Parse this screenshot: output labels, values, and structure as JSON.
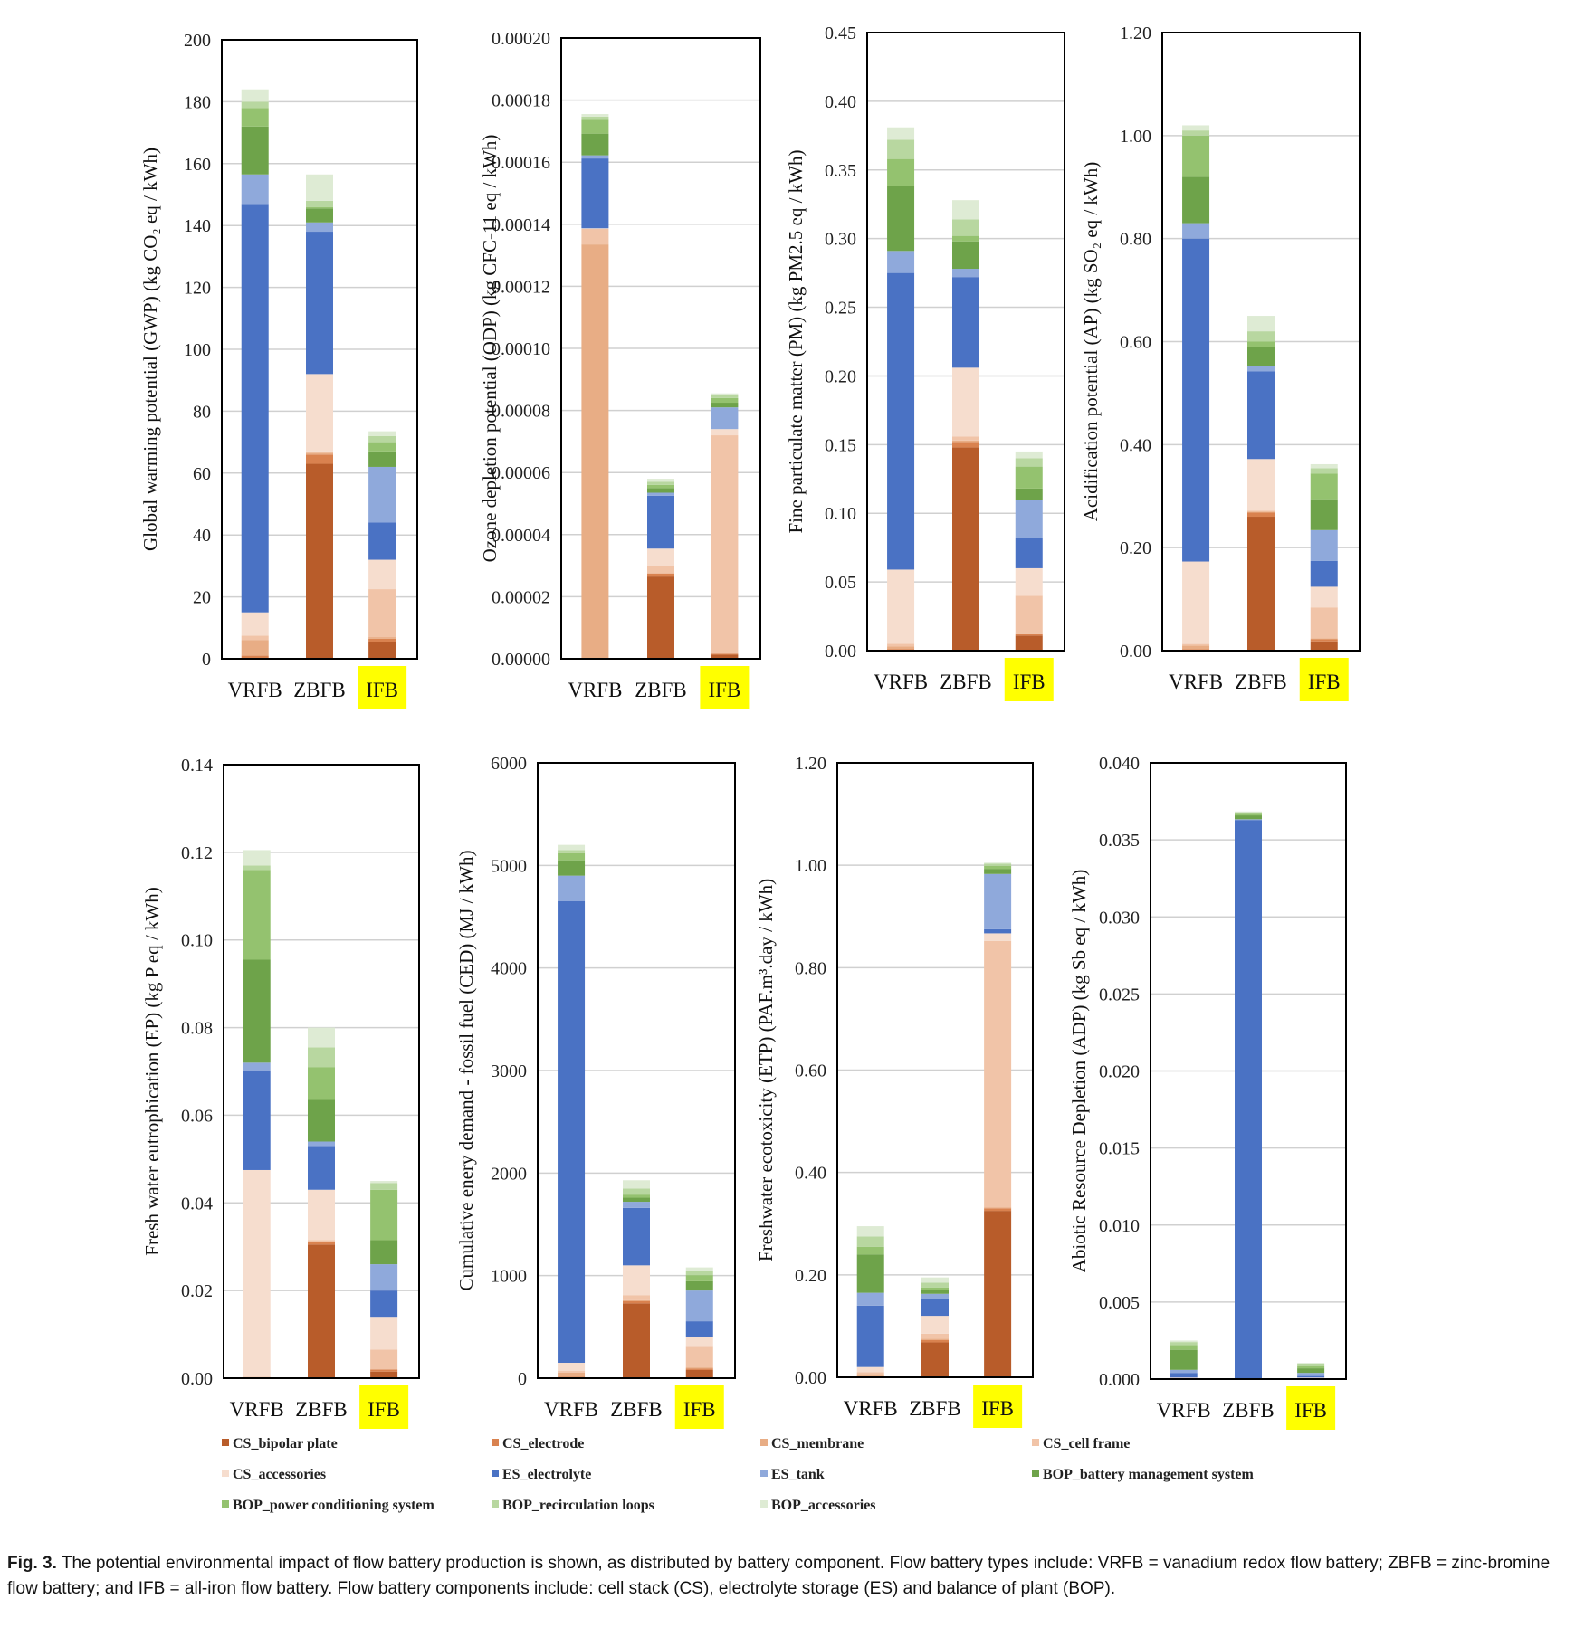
{
  "caption": {
    "label": "Fig. 3.",
    "text": "The potential environmental impact of flow battery production is shown, as distributed by battery component. Flow battery types include: VRFB = vanadium redox flow battery; ZBFB = zinc-bromine flow battery; and IFB = all-iron flow battery. Flow battery components include: cell stack (CS), electrolyte storage (ES) and balance of plant (BOP)."
  },
  "highlight": {
    "category": "IFB",
    "color": "#ffff00"
  },
  "components": [
    {
      "name": "CS_bipolar plate",
      "color": "#b85c2a"
    },
    {
      "name": "CS_electrode",
      "color": "#d9824f"
    },
    {
      "name": "CS_membrane",
      "color": "#e8ad85"
    },
    {
      "name": "CS_cell frame",
      "color": "#f1c4a8"
    },
    {
      "name": "CS_accessories",
      "color": "#f6ddce"
    },
    {
      "name": "ES_electrolyte",
      "color": "#4a72c4"
    },
    {
      "name": "ES_tank",
      "color": "#8fa9db"
    },
    {
      "name": "BOP_battery management system",
      "color": "#6ea34a"
    },
    {
      "name": "BOP_power conditioning system",
      "color": "#94c26f"
    },
    {
      "name": "BOP_recirculation loops",
      "color": "#b8d7a0"
    },
    {
      "name": "BOP_accessories",
      "color": "#deebd4"
    }
  ],
  "chart_data": [
    {
      "type": "bar",
      "stacked": true,
      "ylabel": "Global warming potential (GWP) (kg CO₂ eq / kWh)",
      "categories": [
        "VRFB",
        "ZBFB",
        "IFB"
      ],
      "ylim": [
        0,
        200
      ],
      "yticks": [
        "0",
        "20",
        "40",
        "60",
        "80",
        "100",
        "120",
        "140",
        "160",
        "180",
        "200"
      ],
      "series": [
        {
          "name": "CS_bipolar plate",
          "values": [
            0,
            63,
            5.5
          ]
        },
        {
          "name": "CS_electrode",
          "values": [
            1,
            3,
            1
          ]
        },
        {
          "name": "CS_membrane",
          "values": [
            5,
            0.5,
            0.5
          ]
        },
        {
          "name": "CS_cell frame",
          "values": [
            1.5,
            0.5,
            15.5
          ]
        },
        {
          "name": "CS_accessories",
          "values": [
            7.5,
            25,
            9.5
          ]
        },
        {
          "name": "ES_electrolyte",
          "values": [
            132,
            46,
            12
          ]
        },
        {
          "name": "ES_tank",
          "values": [
            9.5,
            3,
            18
          ]
        },
        {
          "name": "BOP_battery management system",
          "values": [
            15.5,
            4.5,
            5
          ]
        },
        {
          "name": "BOP_power conditioning system",
          "values": [
            6,
            0.5,
            3
          ]
        },
        {
          "name": "BOP_recirculation loops",
          "values": [
            2,
            2,
            2
          ]
        },
        {
          "name": "BOP_accessories",
          "values": [
            4,
            8.5,
            1.5
          ]
        }
      ]
    },
    {
      "type": "bar",
      "stacked": true,
      "ylabel": "Ozone depletion potential (ODP) (kg CFC-11 eq / kWh)",
      "categories": [
        "VRFB",
        "ZBFB",
        "IFB"
      ],
      "ylim": [
        0,
        0.0002
      ],
      "yticks": [
        "0.00000",
        "0.00002",
        "0.00004",
        "0.00006",
        "0.00008",
        "0.00010",
        "0.00012",
        "0.00014",
        "0.00016",
        "0.00018",
        "0.00020"
      ],
      "series": [
        {
          "name": "CS_bipolar plate",
          "values": [
            0,
            2.65e-05,
            1.3e-06
          ]
        },
        {
          "name": "CS_electrode",
          "values": [
            0,
            1e-06,
            3e-07
          ]
        },
        {
          "name": "CS_membrane",
          "values": [
            0.0001335,
            0,
            0
          ]
        },
        {
          "name": "CS_cell frame",
          "values": [
            5e-06,
            2.5e-06,
            7.04e-05
          ]
        },
        {
          "name": "CS_accessories",
          "values": [
            2e-07,
            5.5e-06,
            2e-06
          ]
        },
        {
          "name": "ES_electrolyte",
          "values": [
            2.25e-05,
            1.7e-05,
            0
          ]
        },
        {
          "name": "ES_tank",
          "values": [
            1e-06,
            1e-06,
            7e-06
          ]
        },
        {
          "name": "BOP_battery management system",
          "values": [
            7e-06,
            1.5e-06,
            1.5e-06
          ]
        },
        {
          "name": "BOP_power conditioning system",
          "values": [
            4.5e-06,
            1e-06,
            1.5e-06
          ]
        },
        {
          "name": "BOP_recirculation loops",
          "values": [
            1e-06,
            1e-06,
            1e-06
          ]
        },
        {
          "name": "BOP_accessories",
          "values": [
            8e-07,
            1e-06,
            5e-07
          ]
        }
      ]
    },
    {
      "type": "bar",
      "stacked": true,
      "ylabel": "Fine particulate matter (PM) (kg PM2.5 eq / kWh)",
      "categories": [
        "VRFB",
        "ZBFB",
        "IFB"
      ],
      "ylim": [
        0,
        0.45
      ],
      "yticks": [
        "0.00",
        "0.05",
        "0.10",
        "0.15",
        "0.20",
        "0.25",
        "0.30",
        "0.35",
        "0.40",
        "0.45"
      ],
      "series": [
        {
          "name": "CS_bipolar plate",
          "values": [
            0,
            0.148,
            0.011
          ]
        },
        {
          "name": "CS_electrode",
          "values": [
            0.001,
            0.004,
            0.001
          ]
        },
        {
          "name": "CS_membrane",
          "values": [
            0.002,
            0.001,
            0
          ]
        },
        {
          "name": "CS_cell frame",
          "values": [
            0.002,
            0.003,
            0.028
          ]
        },
        {
          "name": "CS_accessories",
          "values": [
            0.054,
            0.05,
            0.02
          ]
        },
        {
          "name": "ES_electrolyte",
          "values": [
            0.216,
            0.066,
            0.022
          ]
        },
        {
          "name": "ES_tank",
          "values": [
            0.016,
            0.006,
            0.028
          ]
        },
        {
          "name": "BOP_battery management system",
          "values": [
            0.047,
            0.02,
            0.008
          ]
        },
        {
          "name": "BOP_power conditioning system",
          "values": [
            0.02,
            0.004,
            0.016
          ]
        },
        {
          "name": "BOP_recirculation loops",
          "values": [
            0.014,
            0.012,
            0.006
          ]
        },
        {
          "name": "BOP_accessories",
          "values": [
            0.009,
            0.014,
            0.005
          ]
        }
      ]
    },
    {
      "type": "bar",
      "stacked": true,
      "ylabel": "Acidification potential (AP) (kg SO₂ eq / kWh)",
      "categories": [
        "VRFB",
        "ZBFB",
        "IFB"
      ],
      "ylim": [
        0,
        1.2
      ],
      "yticks": [
        "0.00",
        "0.20",
        "0.40",
        "0.60",
        "0.80",
        "1.00",
        "1.20"
      ],
      "series": [
        {
          "name": "CS_bipolar plate",
          "values": [
            0,
            0.26,
            0.018
          ]
        },
        {
          "name": "CS_electrode",
          "values": [
            0.003,
            0.008,
            0.004
          ]
        },
        {
          "name": "CS_membrane",
          "values": [
            0.007,
            0.002,
            0.002
          ]
        },
        {
          "name": "CS_cell frame",
          "values": [
            0.003,
            0.002,
            0.06
          ]
        },
        {
          "name": "CS_accessories",
          "values": [
            0.16,
            0.1,
            0.04
          ]
        },
        {
          "name": "ES_electrolyte",
          "values": [
            0.627,
            0.17,
            0.05
          ]
        },
        {
          "name": "ES_tank",
          "values": [
            0.03,
            0.01,
            0.06
          ]
        },
        {
          "name": "BOP_battery management system",
          "values": [
            0.09,
            0.038,
            0.06
          ]
        },
        {
          "name": "BOP_power conditioning system",
          "values": [
            0.08,
            0.01,
            0.05
          ]
        },
        {
          "name": "BOP_recirculation loops",
          "values": [
            0.01,
            0.02,
            0.01
          ]
        },
        {
          "name": "BOP_accessories",
          "values": [
            0.01,
            0.03,
            0.008
          ]
        }
      ]
    },
    {
      "type": "bar",
      "stacked": true,
      "ylabel": "Fresh water eutrophication (EP) (kg P eq / kWh)",
      "categories": [
        "VRFB",
        "ZBFB",
        "IFB"
      ],
      "ylim": [
        0,
        0.14
      ],
      "yticks": [
        "0.00",
        "0.02",
        "0.04",
        "0.06",
        "0.08",
        "0.10",
        "0.12",
        "0.14"
      ],
      "series": [
        {
          "name": "CS_bipolar plate",
          "values": [
            0,
            0.0305,
            0.0015
          ]
        },
        {
          "name": "CS_electrode",
          "values": [
            0,
            0.0005,
            0.0005
          ]
        },
        {
          "name": "CS_membrane",
          "values": [
            0.0002,
            0,
            0
          ]
        },
        {
          "name": "CS_cell frame",
          "values": [
            0.0001,
            0.0005,
            0.0045
          ]
        },
        {
          "name": "CS_accessories",
          "values": [
            0.0472,
            0.0115,
            0.0075
          ]
        },
        {
          "name": "ES_electrolyte",
          "values": [
            0.0225,
            0.01,
            0.006
          ]
        },
        {
          "name": "ES_tank",
          "values": [
            0.002,
            0.001,
            0.006
          ]
        },
        {
          "name": "BOP_battery management system",
          "values": [
            0.0235,
            0.0095,
            0.0055
          ]
        },
        {
          "name": "BOP_power conditioning system",
          "values": [
            0.0205,
            0.0075,
            0.0115
          ]
        },
        {
          "name": "BOP_recirculation loops",
          "values": [
            0.001,
            0.0045,
            0.0015
          ]
        },
        {
          "name": "BOP_accessories",
          "values": [
            0.0035,
            0.0045,
            0.0005
          ]
        }
      ]
    },
    {
      "type": "bar",
      "stacked": true,
      "ylabel": "Cumulative enery demand - fossil fuel (CED) (MJ / kWh)",
      "categories": [
        "VRFB",
        "ZBFB",
        "IFB"
      ],
      "ylim": [
        0,
        6000
      ],
      "yticks": [
        "0",
        "1000",
        "2000",
        "3000",
        "4000",
        "5000",
        "6000"
      ],
      "series": [
        {
          "name": "CS_bipolar plate",
          "values": [
            0,
            730,
            80
          ]
        },
        {
          "name": "CS_electrode",
          "values": [
            15,
            20,
            15
          ]
        },
        {
          "name": "CS_membrane",
          "values": [
            40,
            10,
            10
          ]
        },
        {
          "name": "CS_cell frame",
          "values": [
            15,
            50,
            210
          ]
        },
        {
          "name": "CS_accessories",
          "values": [
            80,
            290,
            90
          ]
        },
        {
          "name": "ES_electrolyte",
          "values": [
            4500,
            560,
            150
          ]
        },
        {
          "name": "ES_tank",
          "values": [
            250,
            60,
            300
          ]
        },
        {
          "name": "BOP_battery management system",
          "values": [
            150,
            40,
            90
          ]
        },
        {
          "name": "BOP_power conditioning system",
          "values": [
            70,
            30,
            60
          ]
        },
        {
          "name": "BOP_recirculation loops",
          "values": [
            30,
            60,
            40
          ]
        },
        {
          "name": "BOP_accessories",
          "values": [
            50,
            80,
            35
          ]
        }
      ]
    },
    {
      "type": "bar",
      "stacked": true,
      "ylabel": "Freshwater ecotoxicity (ETP) (PAF.m³.day / kWh)",
      "categories": [
        "VRFB",
        "ZBFB",
        "IFB"
      ],
      "ylim": [
        0,
        1.2
      ],
      "yticks": [
        "0.00",
        "0.20",
        "0.40",
        "0.60",
        "0.80",
        "1.00",
        "1.20"
      ],
      "series": [
        {
          "name": "CS_bipolar plate",
          "values": [
            0,
            0.068,
            0.325
          ]
        },
        {
          "name": "CS_electrode",
          "values": [
            0.002,
            0.005,
            0.005
          ]
        },
        {
          "name": "CS_membrane",
          "values": [
            0.004,
            0.002,
            0.002
          ]
        },
        {
          "name": "CS_cell frame",
          "values": [
            0.004,
            0.01,
            0.52
          ]
        },
        {
          "name": "CS_accessories",
          "values": [
            0.01,
            0.035,
            0.015
          ]
        },
        {
          "name": "ES_electrolyte",
          "values": [
            0.12,
            0.033,
            0.008
          ]
        },
        {
          "name": "ES_tank",
          "values": [
            0.025,
            0.01,
            0.108
          ]
        },
        {
          "name": "BOP_battery management system",
          "values": [
            0.075,
            0.007,
            0.01
          ]
        },
        {
          "name": "BOP_power conditioning system",
          "values": [
            0.015,
            0.005,
            0.006
          ]
        },
        {
          "name": "BOP_recirculation loops",
          "values": [
            0.02,
            0.01,
            0.004
          ]
        },
        {
          "name": "BOP_accessories",
          "values": [
            0.02,
            0.01,
            0.002
          ]
        }
      ]
    },
    {
      "type": "bar",
      "stacked": true,
      "ylabel": "Abiotic Resource Depletion (ADP) (kg Sb eq / kWh)",
      "categories": [
        "VRFB",
        "ZBFB",
        "IFB"
      ],
      "ylim": [
        0,
        0.04
      ],
      "yticks": [
        "0.000",
        "0.005",
        "0.010",
        "0.015",
        "0.020",
        "0.025",
        "0.030",
        "0.035",
        "0.040"
      ],
      "series": [
        {
          "name": "CS_bipolar plate",
          "values": [
            0,
            0,
            1e-05
          ]
        },
        {
          "name": "CS_electrode",
          "values": [
            1e-05,
            1e-05,
            1e-05
          ]
        },
        {
          "name": "CS_membrane",
          "values": [
            2e-05,
            0,
            0
          ]
        },
        {
          "name": "CS_cell frame",
          "values": [
            2e-05,
            1e-05,
            5e-05
          ]
        },
        {
          "name": "CS_accessories",
          "values": [
            5e-05,
            2e-05,
            3e-05
          ]
        },
        {
          "name": "ES_electrolyte",
          "values": [
            0.0003,
            0.03625,
            0.0001
          ]
        },
        {
          "name": "ES_tank",
          "values": [
            0.0002,
            5e-05,
            0.0002
          ]
        },
        {
          "name": "BOP_battery management system",
          "values": [
            0.0013,
            0.00025,
            0.0003
          ]
        },
        {
          "name": "BOP_power conditioning system",
          "values": [
            0.0003,
            0.00015,
            0.0002
          ]
        },
        {
          "name": "BOP_recirculation loops",
          "values": [
            0.0002,
            5e-05,
            0.0001
          ]
        },
        {
          "name": "BOP_accessories",
          "values": [
            0.0001,
            5e-05,
            5e-05
          ]
        }
      ]
    }
  ]
}
